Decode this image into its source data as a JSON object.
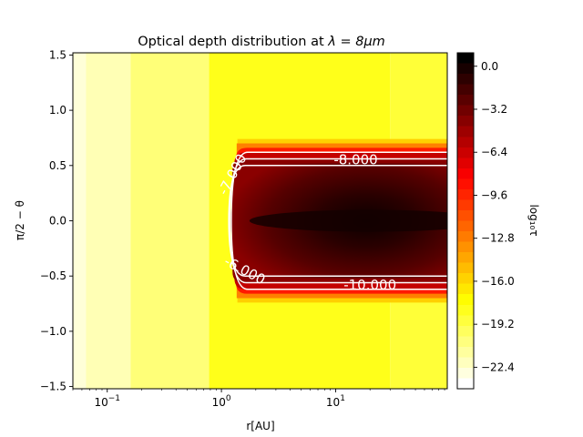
{
  "chart_data": {
    "type": "heatmap",
    "title_text": "Optical depth distribution at ",
    "title_math": "λ = 8μm",
    "xlabel": "r[AU]",
    "ylabel": "π/2 − θ",
    "colorbar_label": "log₁₀τ",
    "x_scale": "log",
    "xlim": [
      0.05,
      95
    ],
    "ylim": [
      -1.52,
      1.52
    ],
    "x_ticks": [
      {
        "value": 0.1,
        "base": "10",
        "exp": "−1"
      },
      {
        "value": 1,
        "base": "10",
        "exp": "0"
      },
      {
        "value": 10,
        "base": "10",
        "exp": "1"
      }
    ],
    "y_ticks": [
      {
        "value": 1.5,
        "label": "1.5"
      },
      {
        "value": 1.0,
        "label": "1.0"
      },
      {
        "value": 0.5,
        "label": "0.5"
      },
      {
        "value": 0.0,
        "label": "0.0"
      },
      {
        "value": -0.5,
        "label": "−0.5"
      },
      {
        "value": -1.0,
        "label": "−1.0"
      },
      {
        "value": -1.5,
        "label": "−1.5"
      }
    ],
    "colorbar": {
      "range": [
        -24,
        1
      ],
      "ticks": [
        {
          "value": 0.0,
          "label": "0.0"
        },
        {
          "value": -3.2,
          "label": "−3.2"
        },
        {
          "value": -6.4,
          "label": "−6.4"
        },
        {
          "value": -9.6,
          "label": "−9.6"
        },
        {
          "value": -12.8,
          "label": "−12.8"
        },
        {
          "value": -16.0,
          "label": "−16.0"
        },
        {
          "value": -19.2,
          "label": "−19.2"
        },
        {
          "value": -22.4,
          "label": "−22.4"
        }
      ]
    },
    "background_bands": [
      {
        "x_end": 0.065,
        "color": "#ffffd8"
      },
      {
        "x_end": 0.16,
        "color": "#ffffb5"
      },
      {
        "x_end": 0.78,
        "color": "#ffff78"
      },
      {
        "x_end": 30,
        "color": "#ffff1a"
      },
      {
        "x_end": 95,
        "color": "#ffff38"
      }
    ],
    "contour_labels": [
      {
        "text": "-8.000",
        "x": 15,
        "y": 0.55,
        "angle": 0
      },
      {
        "text": "-10.000",
        "x": 20,
        "y": -0.58,
        "angle": 0
      },
      {
        "text": "-7.000",
        "x": 1.25,
        "y": 0.42,
        "angle": -62
      },
      {
        "text": "-6.000",
        "x": 1.6,
        "y": -0.45,
        "angle": 28
      }
    ]
  }
}
